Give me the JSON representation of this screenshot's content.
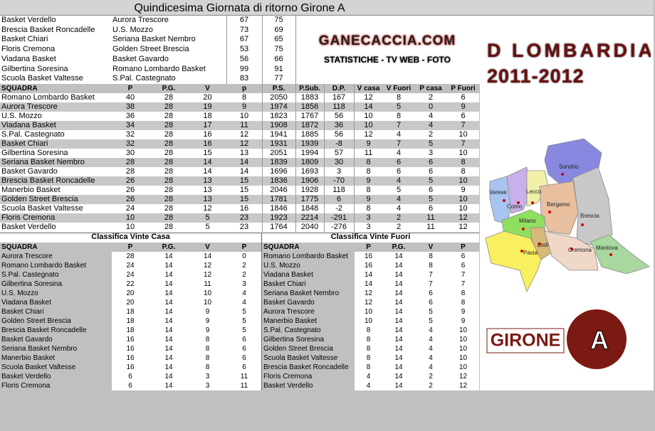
{
  "title": "Quindicesima Giornata di ritorno Girone A",
  "results": {
    "rows": [
      [
        "Basket Verdello",
        "Aurora Trescore",
        67,
        75
      ],
      [
        "Brescia Basket Roncadelle",
        "U.S. Mozzo",
        73,
        69
      ],
      [
        "Basket Chiari",
        "Seriana Basket Nembro",
        67,
        65
      ],
      [
        "Floris Cremona",
        "Golden Street Brescia",
        53,
        75
      ],
      [
        "Viadana Basket",
        "Basket Gavardo",
        56,
        66
      ],
      [
        "Gilbertina Soresina",
        "Romano Lombardo Basket",
        99,
        91
      ],
      [
        "Scuola Basket Valtesse",
        "S.Pal. Castegnato",
        83,
        77
      ]
    ]
  },
  "logo": {
    "site": "GANECACCIA.COM",
    "tagline": "STATISTICHE - TV WEB - FOTO"
  },
  "league": {
    "name": "D LOMBARDIA",
    "season": "2011-2012",
    "group_label": "GIRONE",
    "group": "A"
  },
  "map": {
    "labels": [
      "Sondrio",
      "Varese",
      "Como",
      "Lecco",
      "Bergamo",
      "Brescia",
      "Milano",
      "Lodi",
      "Cremona",
      "Mantova",
      "Pavia"
    ]
  },
  "standings": {
    "headers": [
      "SQUADRA",
      "P",
      "P.G.",
      "V",
      "p",
      "P.S.",
      "P.Sub.",
      "D.P.",
      "V casa",
      "V Fuori",
      "P casa",
      "P Fuori"
    ],
    "rows": [
      [
        "Romano Lombardo Basket",
        40,
        28,
        20,
        8,
        2050,
        1883,
        167,
        12,
        8,
        2,
        6
      ],
      [
        "Aurora Trescore",
        38,
        28,
        19,
        9,
        1974,
        1856,
        118,
        14,
        5,
        0,
        9
      ],
      [
        "U.S. Mozzo",
        36,
        28,
        18,
        10,
        1823,
        1767,
        56,
        10,
        8,
        4,
        6
      ],
      [
        "Viadana Basket",
        34,
        28,
        17,
        11,
        1908,
        1872,
        36,
        10,
        7,
        4,
        7
      ],
      [
        "S.Pal. Castegnato",
        32,
        28,
        16,
        12,
        1941,
        1885,
        56,
        12,
        4,
        2,
        10
      ],
      [
        "Basket Chiari",
        32,
        28,
        16,
        12,
        1931,
        1939,
        -8,
        9,
        7,
        5,
        7
      ],
      [
        "Gilbertina Soresina",
        30,
        28,
        15,
        13,
        2051,
        1994,
        57,
        11,
        4,
        3,
        10
      ],
      [
        "Seriana Basket Nembro",
        28,
        28,
        14,
        14,
        1839,
        1809,
        30,
        8,
        6,
        6,
        8
      ],
      [
        "Basket Gavardo",
        28,
        28,
        14,
        14,
        1696,
        1693,
        3,
        8,
        6,
        6,
        8
      ],
      [
        "Brescia Basket Roncadelle",
        26,
        28,
        13,
        15,
        1836,
        1906,
        -70,
        9,
        4,
        5,
        10
      ],
      [
        "Manerbio Basket",
        26,
        28,
        13,
        15,
        2046,
        1928,
        118,
        8,
        5,
        6,
        9
      ],
      [
        "Golden Street Brescia",
        26,
        28,
        13,
        15,
        1781,
        1775,
        6,
        9,
        4,
        5,
        10
      ],
      [
        "Scuola Basket Valtesse",
        24,
        28,
        12,
        16,
        1846,
        1848,
        -2,
        8,
        4,
        6,
        10
      ],
      [
        "Floris Cremona",
        10,
        28,
        5,
        23,
        1923,
        2214,
        -291,
        3,
        2,
        11,
        12
      ],
      [
        "Basket Verdello",
        10,
        28,
        5,
        23,
        1764,
        2040,
        -276,
        3,
        2,
        11,
        12
      ]
    ]
  },
  "home": {
    "title": "Classifica Vinte Casa",
    "headers": [
      "SQUADRA",
      "P",
      "P.G.",
      "V",
      "P"
    ],
    "rows": [
      [
        "Aurora Trescore",
        28,
        14,
        14,
        0
      ],
      [
        "Romano Lombardo Basket",
        24,
        14,
        12,
        2
      ],
      [
        "S.Pal. Castegnato",
        24,
        14,
        12,
        2
      ],
      [
        "Gilbertina Soresina",
        22,
        14,
        11,
        3
      ],
      [
        "U.S. Mozzo",
        20,
        14,
        10,
        4
      ],
      [
        "Viadana Basket",
        20,
        14,
        10,
        4
      ],
      [
        "Basket Chiari",
        18,
        14,
        9,
        5
      ],
      [
        "Golden Street Brescia",
        18,
        14,
        9,
        5
      ],
      [
        "Brescia Basket Roncadelle",
        18,
        14,
        9,
        5
      ],
      [
        "Basket Gavardo",
        16,
        14,
        8,
        6
      ],
      [
        "Seriana Basket Nembro",
        16,
        14,
        8,
        6
      ],
      [
        "Manerbio Basket",
        16,
        14,
        8,
        6
      ],
      [
        "Scuola Basket Valtesse",
        16,
        14,
        8,
        6
      ],
      [
        "Basket Verdello",
        6,
        14,
        3,
        11
      ],
      [
        "Floris Cremona",
        6,
        14,
        3,
        11
      ]
    ]
  },
  "away": {
    "title": "Classifica Vinte Fuori",
    "headers": [
      "SQUADRA",
      "P",
      "P.G.",
      "V",
      "P"
    ],
    "rows": [
      [
        "Romano Lombardo Basket",
        16,
        14,
        8,
        6
      ],
      [
        "U.S. Mozzo",
        16,
        14,
        8,
        6
      ],
      [
        "Viadana Basket",
        14,
        14,
        7,
        7
      ],
      [
        "Basket Chiari",
        14,
        14,
        7,
        7
      ],
      [
        "Seriana Basket Nembro",
        12,
        14,
        6,
        8
      ],
      [
        "Basket Gavardo",
        12,
        14,
        6,
        8
      ],
      [
        "Aurora Trescore",
        10,
        14,
        5,
        9
      ],
      [
        "Manerbio Basket",
        10,
        14,
        5,
        9
      ],
      [
        "S.Pal. Castegnato",
        8,
        14,
        4,
        10
      ],
      [
        "Gilbertina Soresina",
        8,
        14,
        4,
        10
      ],
      [
        "Golden Street Brescia",
        8,
        14,
        4,
        10
      ],
      [
        "Scuola Basket Valtesse",
        8,
        14,
        4,
        10
      ],
      [
        "Brescia Basket Roncadelle",
        8,
        14,
        4,
        10
      ],
      [
        "Floris Cremona",
        4,
        14,
        2,
        12
      ],
      [
        "Basket Verdello",
        4,
        14,
        2,
        12
      ]
    ]
  }
}
